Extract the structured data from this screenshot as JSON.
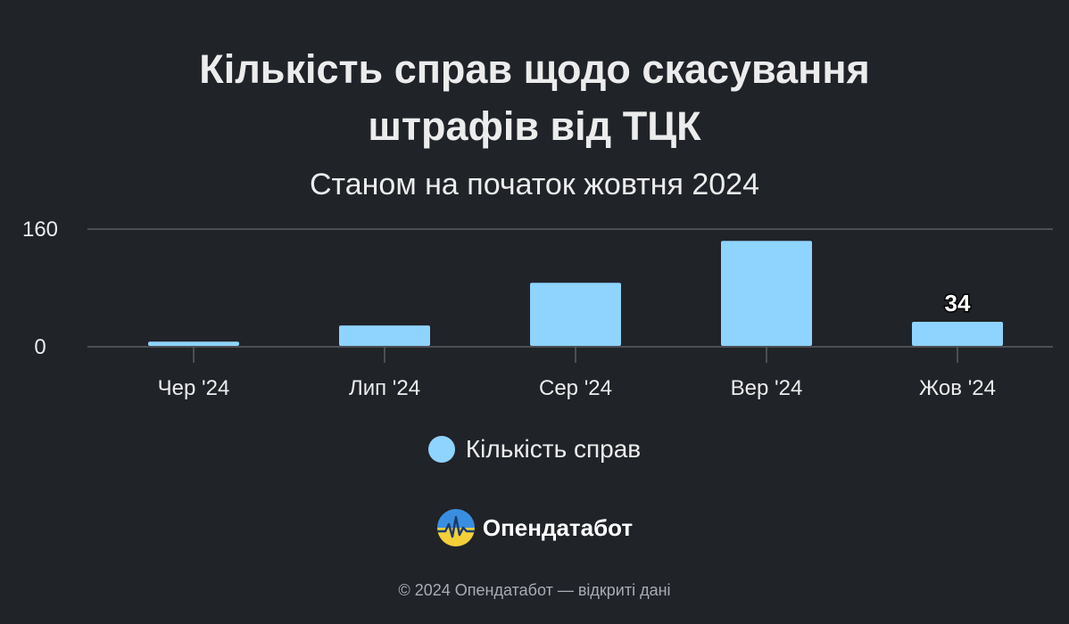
{
  "colors": {
    "background": "#202328",
    "bar": "#8fd3ff",
    "grid": "#5a5d63",
    "text": "#ececec"
  },
  "brand": {
    "icon": "opendatabot-logo-icon",
    "name": "Опендатабот"
  },
  "footer": {
    "copyright": "© 2024 Опендатабот — відкриті дані"
  },
  "chart_data": {
    "type": "bar",
    "title_line1": "Кількість справ щодо скасування",
    "title_line2": "штрафів від ТЦК",
    "subtitle": "Станом на початок жовтня 2024",
    "categories": [
      "Чер '24",
      "Лип '24",
      "Сер '24",
      "Вер '24",
      "Жов '24"
    ],
    "series": [
      {
        "name": "Кількість справ",
        "values": [
          7,
          29,
          87,
          144,
          34
        ]
      }
    ],
    "data_labels": [
      null,
      null,
      null,
      null,
      "34"
    ],
    "y_ticks": [
      "0",
      "160"
    ],
    "ylim": [
      0,
      160
    ],
    "grid": true,
    "legend_position": "bottom"
  }
}
